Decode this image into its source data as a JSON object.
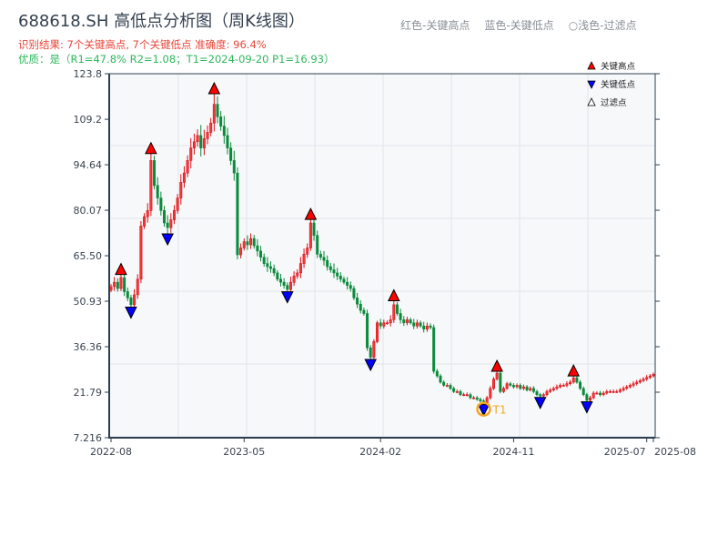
{
  "title": "688618.SH 高低点分析图（周K线图）",
  "result_text": "识别结果: 7个关键高点, 7个关键低点  准确度: 96.4%",
  "quality_text": "优质：是（R1=47.8%  R2=1.08；T1=2024-09-20 P1=16.93）",
  "top_legend": [
    "红色-关键高点",
    "蓝色-关键低点",
    "○浅色-过滤点"
  ],
  "legend": {
    "items": [
      {
        "label": "关键高点",
        "marker": "triangle-up",
        "color": "#ff0000"
      },
      {
        "label": "关键低点",
        "marker": "triangle-down",
        "color": "#0000ff"
      },
      {
        "label": "过滤点",
        "marker": "triangle-up-hollow",
        "color": "#ffffff"
      }
    ]
  },
  "colors": {
    "up": "#d9131b",
    "down": "#0b8a3a",
    "t1": "#f5a623",
    "axis": "#2c3e50",
    "plot_bg": "#f6f8fa",
    "grid": "#e1e5ea"
  },
  "chart_data": {
    "type": "candlestick",
    "frequency": "weekly",
    "ylim": [
      7.216,
      123.8
    ],
    "y_ticks": [
      "7.216",
      "21.79",
      "36.36",
      "50.93",
      "65.50",
      "80.07",
      "94.64",
      "109.2",
      "123.8"
    ],
    "x_ticks": [
      {
        "label": "2022-08",
        "index": 0
      },
      {
        "label": "2023-05",
        "index": 40
      },
      {
        "label": "2024-02",
        "index": 81
      },
      {
        "label": "2024-11",
        "index": 121
      },
      {
        "label": "2025-07",
        "index": 161
      },
      {
        "label": "2025-08",
        "index": 163
      }
    ],
    "grid": true,
    "legend_position": "top-right",
    "closes": [
      55.6,
      57,
      55,
      58.5,
      54,
      52,
      49.8,
      53,
      58,
      75,
      78,
      80,
      96,
      88,
      84,
      80,
      76,
      74.5,
      77,
      80,
      84,
      89,
      92,
      96,
      100,
      102,
      104,
      100,
      103,
      105,
      108,
      114,
      110,
      107,
      104,
      100,
      96,
      92,
      65.8,
      68,
      70,
      69,
      71,
      68.7,
      67,
      65,
      63,
      62,
      61.4,
      60,
      58,
      57,
      56,
      54.7,
      57,
      59,
      60,
      63,
      66,
      68,
      76,
      72,
      66,
      65,
      64,
      62,
      61,
      60,
      59,
      58,
      57,
      56,
      55,
      52,
      50,
      48,
      47,
      36,
      33,
      38,
      44,
      43,
      44,
      44,
      45,
      49.8,
      47,
      45,
      44,
      45,
      44,
      43,
      44,
      43,
      42,
      43,
      42.5,
      28.5,
      27,
      25,
      24,
      24,
      23,
      22,
      22,
      21,
      21,
      21,
      20,
      20,
      19.5,
      19,
      18.3,
      20,
      23,
      26,
      27.9,
      22,
      23,
      24.5,
      24,
      23.5,
      24,
      23,
      23.5,
      22.5,
      23,
      22,
      21,
      20.6,
      21,
      22,
      22.5,
      23,
      23.5,
      24,
      24,
      24.5,
      25,
      26.4,
      25,
      23,
      21,
      19.2,
      20,
      21.5,
      21.5,
      21,
      21.5,
      22,
      22,
      22,
      22,
      22.5,
      23,
      23.5,
      24,
      24.5,
      25,
      25.5,
      26,
      26.5,
      27,
      27.5
    ],
    "key_highs": [
      3,
      12,
      31,
      60,
      85,
      116,
      139
    ],
    "key_lows": [
      6,
      17,
      53,
      78,
      112,
      129,
      143
    ],
    "t1": {
      "index": 112,
      "label": "T1",
      "date": "2024-09-20",
      "price": 16.93
    }
  }
}
